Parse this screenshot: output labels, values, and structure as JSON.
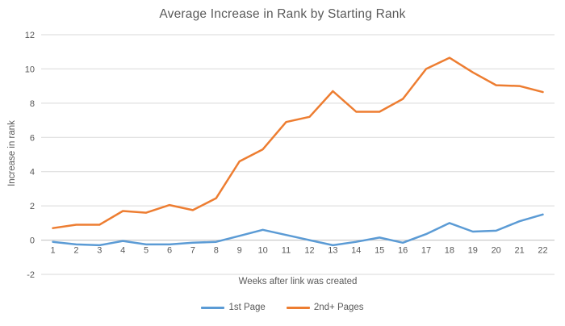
{
  "chart_data": {
    "type": "line",
    "title": "Average Increase in Rank by Starting Rank",
    "xlabel": "Weeks after link was created",
    "ylabel": "Increase in rank",
    "x": [
      1,
      2,
      3,
      4,
      5,
      6,
      7,
      8,
      9,
      10,
      11,
      12,
      13,
      14,
      15,
      16,
      17,
      18,
      19,
      20,
      21,
      22
    ],
    "series": [
      {
        "name": "1st Page",
        "color": "#5B9BD5",
        "values": [
          -0.1,
          -0.25,
          -0.3,
          -0.05,
          -0.25,
          -0.25,
          -0.15,
          -0.1,
          0.25,
          0.6,
          0.3,
          0.0,
          -0.3,
          -0.1,
          0.15,
          -0.15,
          0.35,
          1.0,
          0.5,
          0.55,
          1.1,
          1.5
        ]
      },
      {
        "name": "2nd+ Pages",
        "color": "#ED7D31",
        "values": [
          0.7,
          0.9,
          0.9,
          1.7,
          1.6,
          2.05,
          1.75,
          2.45,
          4.6,
          5.3,
          6.9,
          7.2,
          8.7,
          7.5,
          7.5,
          8.25,
          10.0,
          10.65,
          9.8,
          9.05,
          9.0,
          8.65
        ]
      }
    ],
    "ylim": [
      -2,
      12
    ],
    "yticks": [
      -2,
      0,
      2,
      4,
      6,
      8,
      10,
      12
    ],
    "grid": true,
    "legend_position": "bottom",
    "colors": {
      "text": "#595959",
      "gridline": "#D9D9D9",
      "axis_line": "#BFBFBF",
      "background": "#FFFFFF"
    }
  }
}
